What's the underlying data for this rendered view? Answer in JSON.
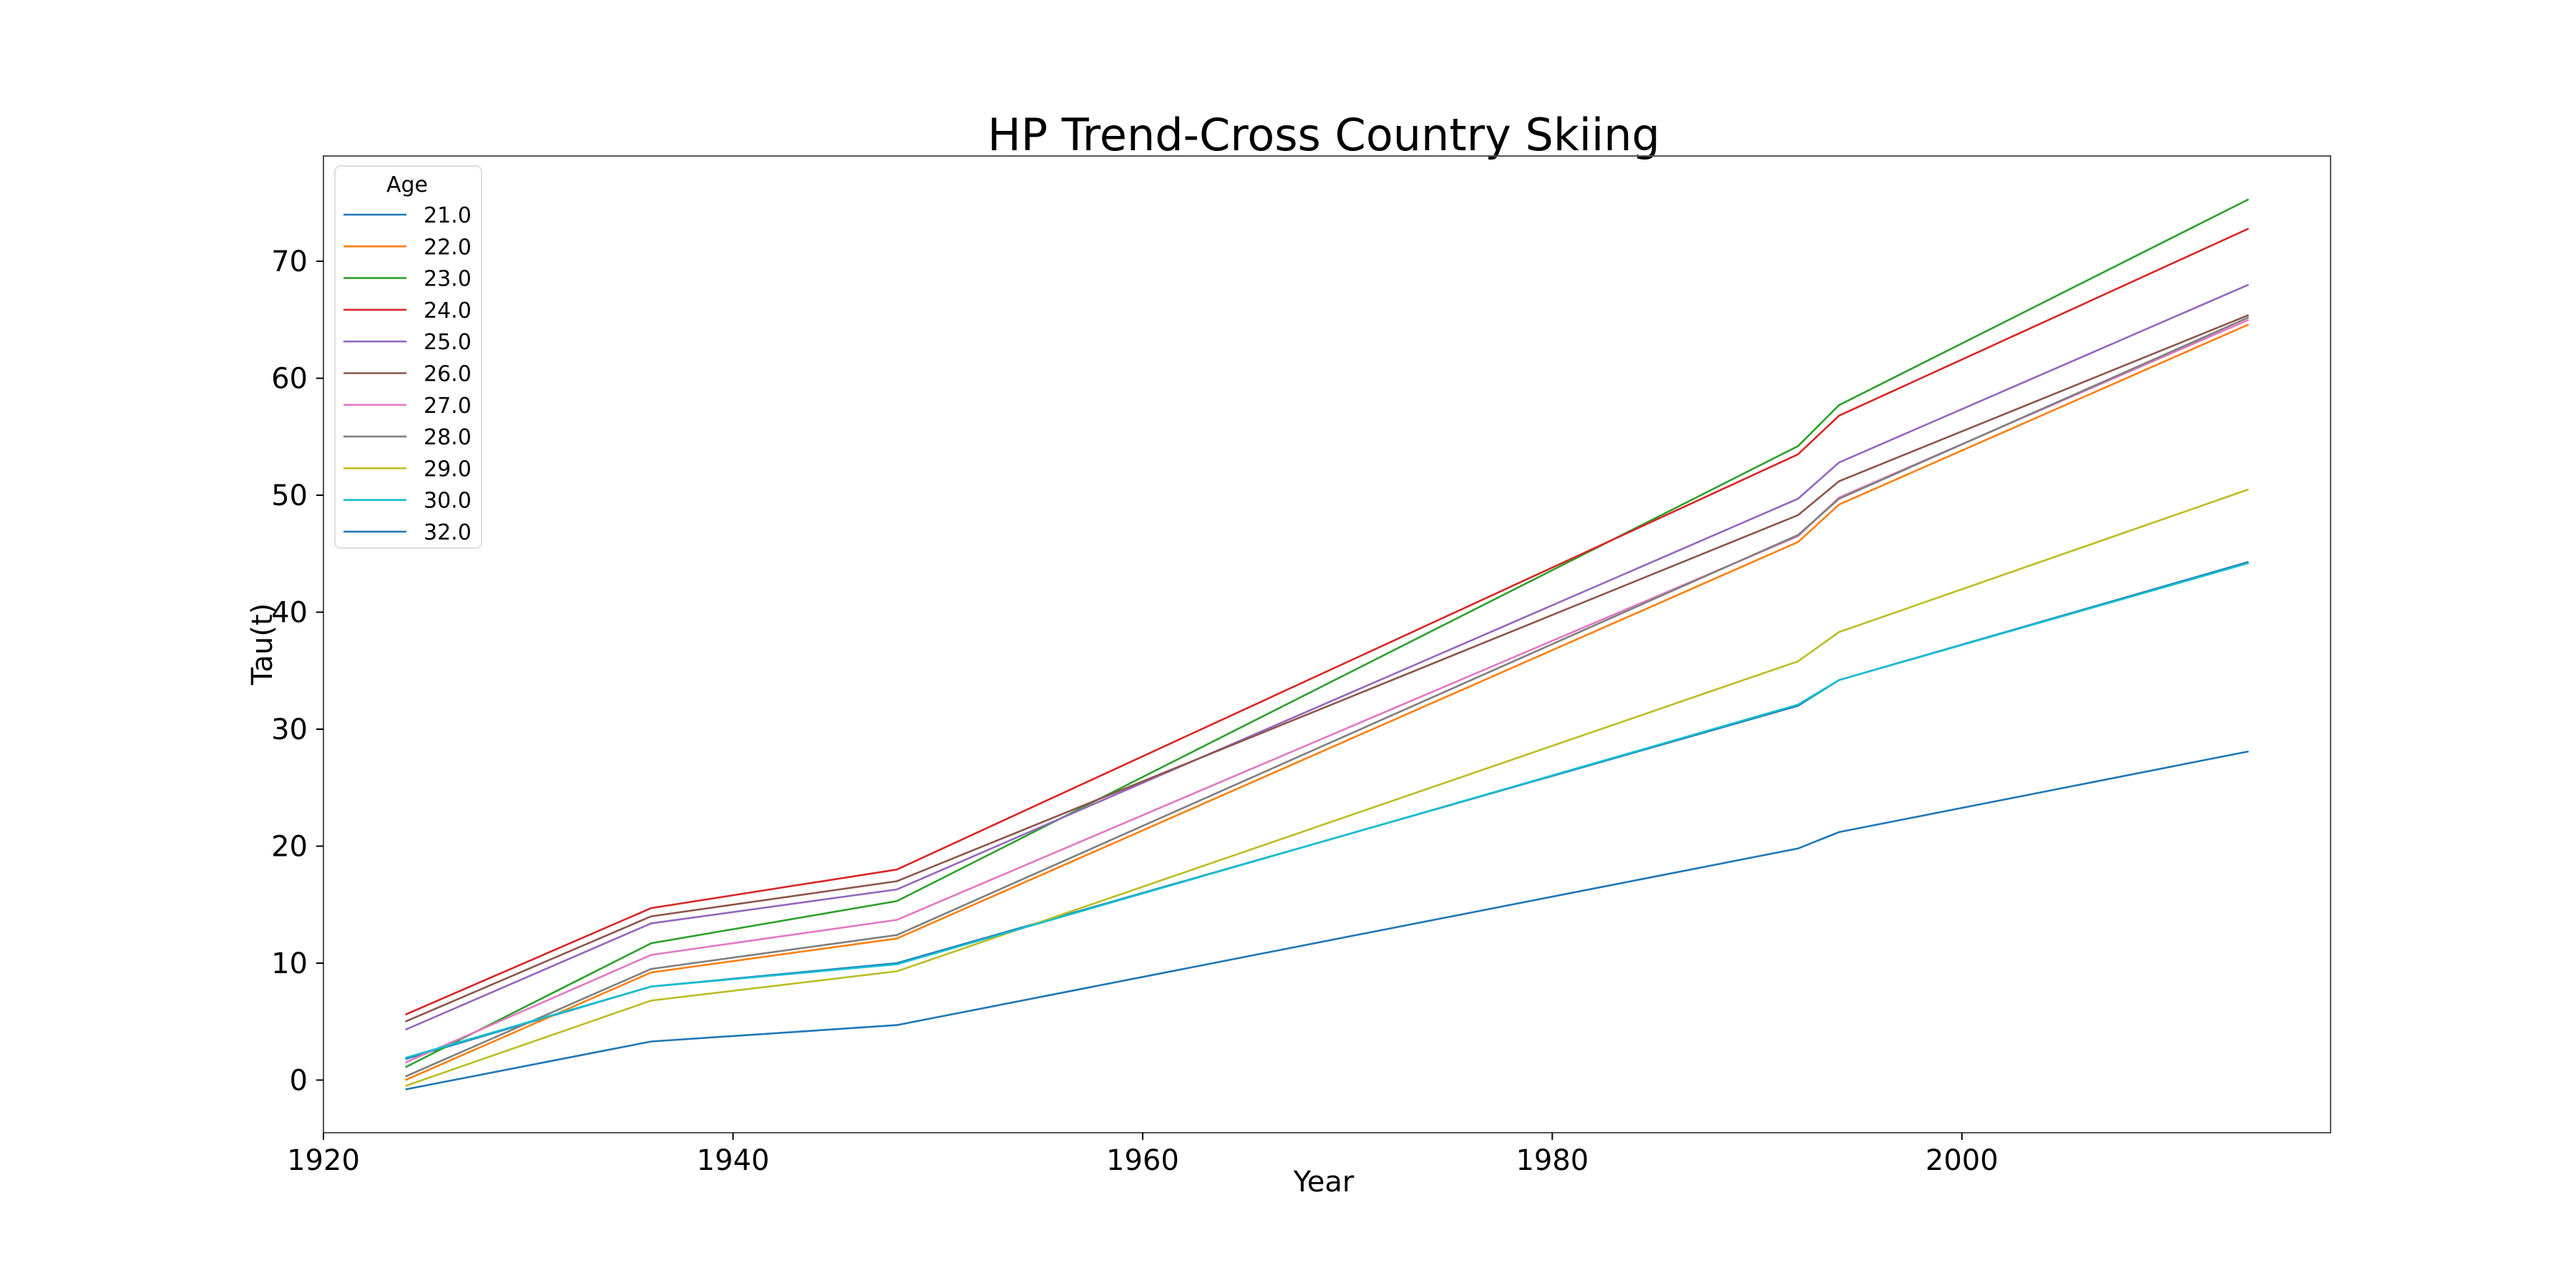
{
  "chart_data": {
    "type": "line",
    "title": "HP Trend-Cross Country Skiing",
    "xlabel": "Year",
    "ylabel": "Tau(t)",
    "xlim": [
      1920,
      2018
    ],
    "ylim": [
      -4.5,
      79
    ],
    "xticks": [
      1920,
      1940,
      1960,
      1980,
      2000
    ],
    "yticks": [
      0,
      10,
      20,
      30,
      40,
      50,
      60,
      70
    ],
    "grid": false,
    "legend": {
      "title": "Age",
      "placement": "top-left"
    },
    "x": [
      1924,
      1936,
      1948,
      1992,
      1994,
      2014
    ],
    "series": [
      {
        "name": "21.0",
        "color": "#1f77b4",
        "values": [
          1.8,
          8.0,
          10.0,
          32.0,
          34.2,
          44.3
        ]
      },
      {
        "name": "22.0",
        "color": "#ff7f0e",
        "values": [
          0.0,
          9.2,
          12.1,
          46.0,
          49.2,
          64.6
        ]
      },
      {
        "name": "23.0",
        "color": "#2ca02c",
        "values": [
          1.1,
          11.7,
          15.3,
          54.2,
          57.7,
          75.3
        ]
      },
      {
        "name": "24.0",
        "color": "#d62728",
        "values": [
          5.6,
          14.7,
          18.0,
          53.5,
          56.8,
          72.8
        ]
      },
      {
        "name": "25.0",
        "color": "#9467bd",
        "values": [
          4.3,
          13.4,
          16.3,
          49.7,
          52.8,
          68.0
        ]
      },
      {
        "name": "26.0",
        "color": "#8c564b",
        "values": [
          5.0,
          14.0,
          17.0,
          48.3,
          51.2,
          65.4
        ]
      },
      {
        "name": "27.0",
        "color": "#e377c2",
        "values": [
          1.5,
          10.7,
          13.7,
          46.5,
          49.8,
          65.0
        ]
      },
      {
        "name": "28.0",
        "color": "#7f7f7f",
        "values": [
          0.3,
          9.5,
          12.4,
          46.6,
          49.7,
          65.2
        ]
      },
      {
        "name": "29.0",
        "color": "#bcbd22",
        "values": [
          -0.5,
          6.8,
          9.3,
          35.8,
          38.3,
          50.5
        ]
      },
      {
        "name": "30.0",
        "color": "#17becf",
        "values": [
          1.9,
          8.0,
          9.9,
          32.1,
          34.2,
          44.2
        ]
      },
      {
        "name": "32.0",
        "color": "#1f77b4",
        "values": [
          -0.8,
          3.3,
          4.7,
          19.8,
          21.2,
          28.1
        ]
      }
    ]
  }
}
